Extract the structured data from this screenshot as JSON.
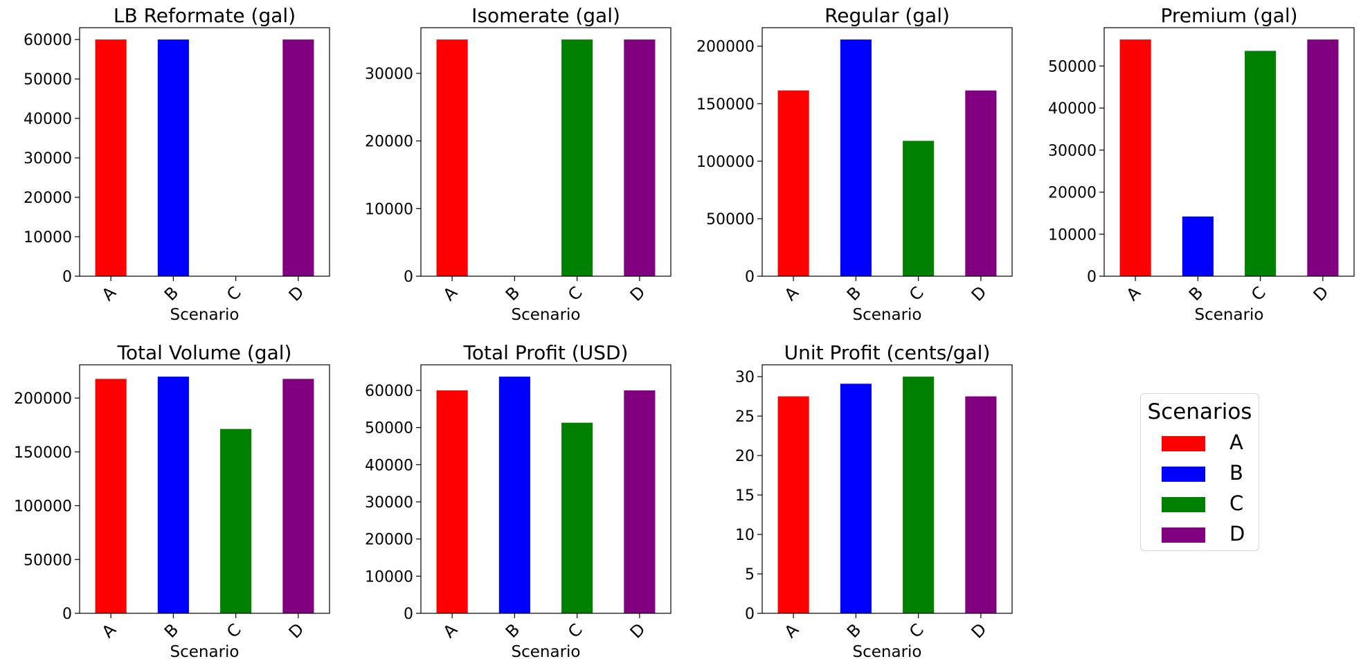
{
  "chart_data": [
    {
      "type": "bar",
      "title": "LB Reformate (gal)",
      "xlabel": "Scenario",
      "ylabel": "",
      "categories": [
        "A",
        "B",
        "C",
        "D"
      ],
      "values": [
        60000,
        60000,
        0,
        60000
      ],
      "ylim": [
        0,
        63000
      ],
      "yticks": [
        0,
        10000,
        20000,
        30000,
        40000,
        50000,
        60000
      ]
    },
    {
      "type": "bar",
      "title": "Isomerate (gal)",
      "xlabel": "Scenario",
      "ylabel": "",
      "categories": [
        "A",
        "B",
        "C",
        "D"
      ],
      "values": [
        35000,
        0,
        35000,
        35000
      ],
      "ylim": [
        0,
        36750
      ],
      "yticks": [
        0,
        10000,
        20000,
        30000
      ]
    },
    {
      "type": "bar",
      "title": "Regular (gal)",
      "xlabel": "Scenario",
      "ylabel": "",
      "categories": [
        "A",
        "B",
        "C",
        "D"
      ],
      "values": [
        161500,
        205800,
        117700,
        161500
      ],
      "ylim": [
        0,
        216090
      ],
      "yticks": [
        0,
        50000,
        100000,
        150000,
        200000
      ]
    },
    {
      "type": "bar",
      "title": "Premium (gal)",
      "xlabel": "Scenario",
      "ylabel": "",
      "categories": [
        "A",
        "B",
        "C",
        "D"
      ],
      "values": [
        56300,
        14200,
        53600,
        56300
      ],
      "ylim": [
        0,
        59115
      ],
      "yticks": [
        0,
        10000,
        20000,
        30000,
        40000,
        50000
      ]
    },
    {
      "type": "bar",
      "title": "Total Volume (gal)",
      "xlabel": "Scenario",
      "ylabel": "",
      "categories": [
        "A",
        "B",
        "C",
        "D"
      ],
      "values": [
        217800,
        219900,
        171300,
        217800
      ],
      "ylim": [
        0,
        230895
      ],
      "yticks": [
        0,
        50000,
        100000,
        150000,
        200000
      ]
    },
    {
      "type": "bar",
      "title": "Total Profit (USD)",
      "xlabel": "Scenario",
      "ylabel": "",
      "categories": [
        "A",
        "B",
        "C",
        "D"
      ],
      "values": [
        60000,
        63700,
        51300,
        60000
      ],
      "ylim": [
        0,
        66885
      ],
      "yticks": [
        0,
        10000,
        20000,
        30000,
        40000,
        50000,
        60000
      ]
    },
    {
      "type": "bar",
      "title": "Unit Profit (cents/gal)",
      "xlabel": "Scenario",
      "ylabel": "",
      "categories": [
        "A",
        "B",
        "C",
        "D"
      ],
      "values": [
        27.5,
        29.1,
        30.0,
        27.5
      ],
      "ylim": [
        0,
        31.5
      ],
      "yticks": [
        0,
        5,
        10,
        15,
        20,
        25,
        30
      ]
    }
  ],
  "colors": {
    "A": "#ff0000",
    "B": "#0000ff",
    "C": "#008000",
    "D": "#800080"
  },
  "legend": {
    "title": "Scenarios",
    "entries": [
      {
        "label": "A",
        "color": "#ff0000"
      },
      {
        "label": "B",
        "color": "#0000ff"
      },
      {
        "label": "C",
        "color": "#008000"
      },
      {
        "label": "D",
        "color": "#800080"
      }
    ]
  }
}
